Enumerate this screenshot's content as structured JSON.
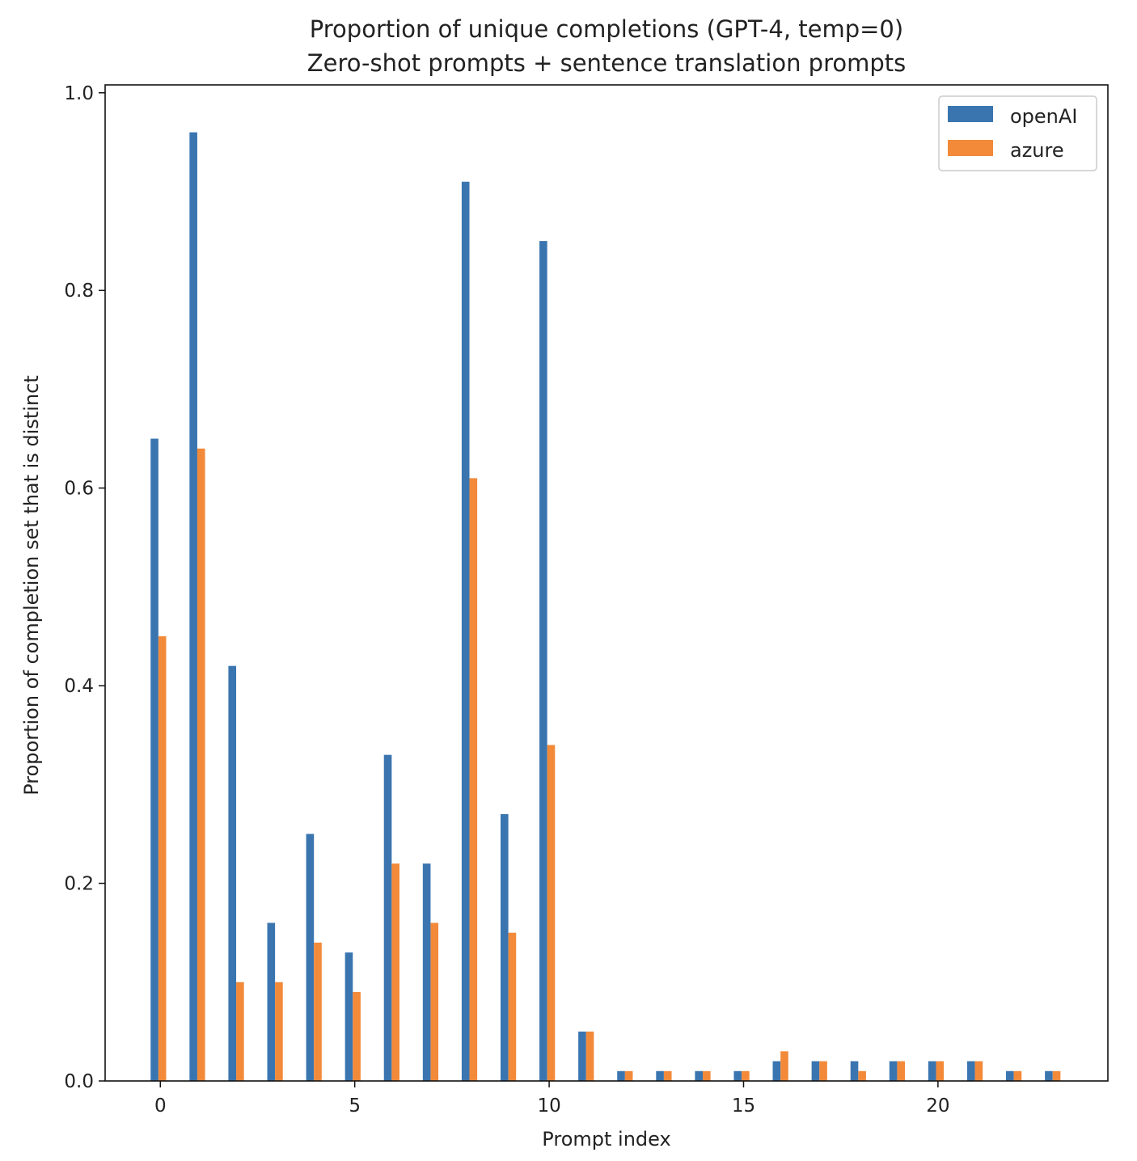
{
  "chart_data": {
    "type": "bar",
    "title": [
      "Proportion of unique completions (GPT-4, temp=0)",
      "Zero-shot prompts + sentence translation prompts"
    ],
    "xlabel": "Prompt index",
    "ylabel": "Proportion of completion set that is distinct",
    "x": [
      0,
      1,
      2,
      3,
      4,
      5,
      6,
      7,
      8,
      9,
      10,
      11,
      12,
      13,
      14,
      15,
      16,
      17,
      18,
      19,
      20,
      21,
      22,
      23
    ],
    "series": [
      {
        "name": "openAI",
        "color": "#3a75b0",
        "values": [
          0.65,
          0.96,
          0.42,
          0.16,
          0.25,
          0.13,
          0.33,
          0.22,
          0.91,
          0.27,
          0.85,
          0.05,
          0.01,
          0.01,
          0.01,
          0.01,
          0.02,
          0.02,
          0.02,
          0.02,
          0.02,
          0.02,
          0.01,
          0.01
        ]
      },
      {
        "name": "azure",
        "color": "#f28a3a",
        "values": [
          0.45,
          0.64,
          0.1,
          0.1,
          0.14,
          0.09,
          0.22,
          0.16,
          0.61,
          0.15,
          0.34,
          0.05,
          0.01,
          0.01,
          0.01,
          0.01,
          0.03,
          0.02,
          0.01,
          0.02,
          0.02,
          0.02,
          0.01,
          0.01
        ]
      }
    ],
    "xlim": [
      -1.42,
      24.37
    ],
    "ylim": [
      0,
      1.008
    ],
    "xticks": [
      "0",
      "5",
      "10",
      "15",
      "20"
    ],
    "yticks": [
      "0.0",
      "0.2",
      "0.4",
      "0.6",
      "0.8",
      "1.0"
    ],
    "grid": false,
    "legend": "top-right"
  }
}
